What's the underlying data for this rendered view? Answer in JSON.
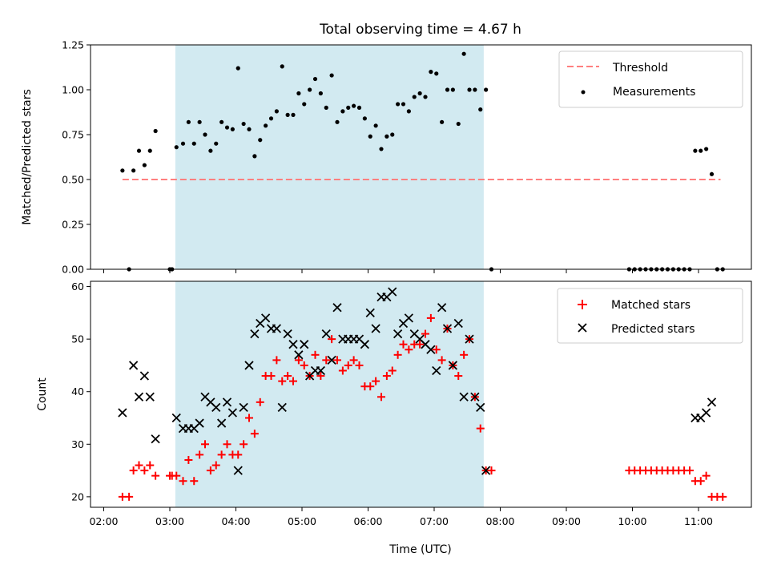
{
  "chart_data": [
    {
      "type": "scatter",
      "title": "Total observing time = 4.67 h",
      "xlabel": "",
      "ylabel": "Matched/Predicted stars",
      "ylim": [
        0,
        1.25
      ],
      "yticks": [
        "0.00",
        "0.25",
        "0.50",
        "0.75",
        "1.00",
        "1.25"
      ],
      "shaded_span": {
        "start": "03:05",
        "end": "07:45",
        "color": "#add8e6"
      },
      "legend_position": "upper right",
      "threshold": {
        "name": "Threshold",
        "value": 0.5,
        "x_start": "02:17",
        "x_end": "11:20",
        "color": "#ff7f7f",
        "style": "dashed"
      },
      "series": [
        {
          "name": "Measurements",
          "marker": "dot",
          "color": "#000000",
          "points": [
            [
              "02:17",
              0.55
            ],
            [
              "02:23",
              0.0
            ],
            [
              "02:27",
              0.55
            ],
            [
              "02:32",
              0.66
            ],
            [
              "02:37",
              0.58
            ],
            [
              "02:42",
              0.66
            ],
            [
              "02:47",
              0.77
            ],
            [
              "03:00",
              0.0
            ],
            [
              "03:02",
              0.0
            ],
            [
              "03:06",
              0.68
            ],
            [
              "03:12",
              0.7
            ],
            [
              "03:17",
              0.82
            ],
            [
              "03:22",
              0.7
            ],
            [
              "03:27",
              0.82
            ],
            [
              "03:32",
              0.75
            ],
            [
              "03:37",
              0.66
            ],
            [
              "03:42",
              0.7
            ],
            [
              "03:47",
              0.82
            ],
            [
              "03:52",
              0.79
            ],
            [
              "03:57",
              0.78
            ],
            [
              "04:02",
              1.12
            ],
            [
              "04:07",
              0.81
            ],
            [
              "04:12",
              0.78
            ],
            [
              "04:17",
              0.63
            ],
            [
              "04:22",
              0.72
            ],
            [
              "04:27",
              0.8
            ],
            [
              "04:32",
              0.84
            ],
            [
              "04:37",
              0.88
            ],
            [
              "04:42",
              1.13
            ],
            [
              "04:47",
              0.86
            ],
            [
              "04:52",
              0.86
            ],
            [
              "04:57",
              0.98
            ],
            [
              "05:02",
              0.92
            ],
            [
              "05:07",
              1.0
            ],
            [
              "05:12",
              1.06
            ],
            [
              "05:17",
              0.98
            ],
            [
              "05:22",
              0.9
            ],
            [
              "05:27",
              1.08
            ],
            [
              "05:32",
              0.82
            ],
            [
              "05:37",
              0.88
            ],
            [
              "05:42",
              0.9
            ],
            [
              "05:47",
              0.91
            ],
            [
              "05:52",
              0.9
            ],
            [
              "05:57",
              0.84
            ],
            [
              "06:02",
              0.74
            ],
            [
              "06:07",
              0.8
            ],
            [
              "06:12",
              0.67
            ],
            [
              "06:17",
              0.74
            ],
            [
              "06:22",
              0.75
            ],
            [
              "06:27",
              0.92
            ],
            [
              "06:32",
              0.92
            ],
            [
              "06:37",
              0.88
            ],
            [
              "06:42",
              0.96
            ],
            [
              "06:47",
              0.98
            ],
            [
              "06:52",
              0.96
            ],
            [
              "06:57",
              1.1
            ],
            [
              "07:02",
              1.09
            ],
            [
              "07:07",
              0.82
            ],
            [
              "07:12",
              1.0
            ],
            [
              "07:17",
              1.0
            ],
            [
              "07:22",
              0.81
            ],
            [
              "07:27",
              1.2
            ],
            [
              "07:32",
              1.0
            ],
            [
              "07:37",
              1.0
            ],
            [
              "07:42",
              0.89
            ],
            [
              "07:47",
              1.0
            ],
            [
              "07:52",
              0.0
            ],
            [
              "09:57",
              0.0
            ],
            [
              "10:02",
              0.0
            ],
            [
              "10:07",
              0.0
            ],
            [
              "10:12",
              0.0
            ],
            [
              "10:17",
              0.0
            ],
            [
              "10:22",
              0.0
            ],
            [
              "10:27",
              0.0
            ],
            [
              "10:32",
              0.0
            ],
            [
              "10:37",
              0.0
            ],
            [
              "10:42",
              0.0
            ],
            [
              "10:47",
              0.0
            ],
            [
              "10:52",
              0.0
            ],
            [
              "10:57",
              0.66
            ],
            [
              "11:02",
              0.66
            ],
            [
              "11:07",
              0.67
            ],
            [
              "11:12",
              0.53
            ],
            [
              "11:17",
              0.0
            ],
            [
              "11:22",
              0.0
            ]
          ]
        }
      ]
    },
    {
      "type": "scatter",
      "xlabel": "Time (UTC)",
      "ylabel": "Count",
      "ylim": [
        18,
        61
      ],
      "yticks": [
        "20",
        "30",
        "40",
        "50",
        "60"
      ],
      "xticks": [
        "02:00",
        "03:00",
        "04:00",
        "05:00",
        "06:00",
        "07:00",
        "08:00",
        "09:00",
        "10:00",
        "11:00"
      ],
      "xlim": [
        "01:48",
        "11:48"
      ],
      "shaded_span": {
        "start": "03:05",
        "end": "07:45",
        "color": "#add8e6"
      },
      "legend_position": "upper right",
      "series": [
        {
          "name": "Matched stars",
          "marker": "plus",
          "color": "#ff0000",
          "points": [
            [
              "02:17",
              20
            ],
            [
              "02:23",
              20
            ],
            [
              "02:27",
              25
            ],
            [
              "02:32",
              26
            ],
            [
              "02:37",
              25
            ],
            [
              "02:42",
              26
            ],
            [
              "02:47",
              24
            ],
            [
              "03:00",
              24
            ],
            [
              "03:02",
              24
            ],
            [
              "03:06",
              24
            ],
            [
              "03:12",
              23
            ],
            [
              "03:17",
              27
            ],
            [
              "03:22",
              23
            ],
            [
              "03:27",
              28
            ],
            [
              "03:32",
              30
            ],
            [
              "03:37",
              25
            ],
            [
              "03:42",
              26
            ],
            [
              "03:47",
              28
            ],
            [
              "03:52",
              30
            ],
            [
              "03:57",
              28
            ],
            [
              "04:02",
              28
            ],
            [
              "04:07",
              30
            ],
            [
              "04:12",
              35
            ],
            [
              "04:17",
              32
            ],
            [
              "04:22",
              38
            ],
            [
              "04:27",
              43
            ],
            [
              "04:32",
              43
            ],
            [
              "04:37",
              46
            ],
            [
              "04:42",
              42
            ],
            [
              "04:47",
              43
            ],
            [
              "04:52",
              42
            ],
            [
              "04:57",
              46
            ],
            [
              "05:02",
              45
            ],
            [
              "05:07",
              43
            ],
            [
              "05:12",
              47
            ],
            [
              "05:17",
              43
            ],
            [
              "05:22",
              46
            ],
            [
              "05:27",
              50
            ],
            [
              "05:32",
              46
            ],
            [
              "05:37",
              44
            ],
            [
              "05:42",
              45
            ],
            [
              "05:47",
              46
            ],
            [
              "05:52",
              45
            ],
            [
              "05:57",
              41
            ],
            [
              "06:02",
              41
            ],
            [
              "06:07",
              42
            ],
            [
              "06:12",
              39
            ],
            [
              "06:17",
              43
            ],
            [
              "06:22",
              44
            ],
            [
              "06:27",
              47
            ],
            [
              "06:32",
              49
            ],
            [
              "06:37",
              48
            ],
            [
              "06:42",
              49
            ],
            [
              "06:47",
              49
            ],
            [
              "06:52",
              51
            ],
            [
              "06:57",
              54
            ],
            [
              "07:02",
              48
            ],
            [
              "07:07",
              46
            ],
            [
              "07:12",
              52
            ],
            [
              "07:17",
              45
            ],
            [
              "07:22",
              43
            ],
            [
              "07:27",
              47
            ],
            [
              "07:32",
              50
            ],
            [
              "07:37",
              39
            ],
            [
              "07:42",
              33
            ],
            [
              "07:47",
              25
            ],
            [
              "07:52",
              25
            ],
            [
              "09:57",
              25
            ],
            [
              "10:02",
              25
            ],
            [
              "10:07",
              25
            ],
            [
              "10:12",
              25
            ],
            [
              "10:17",
              25
            ],
            [
              "10:22",
              25
            ],
            [
              "10:27",
              25
            ],
            [
              "10:32",
              25
            ],
            [
              "10:37",
              25
            ],
            [
              "10:42",
              25
            ],
            [
              "10:47",
              25
            ],
            [
              "10:52",
              25
            ],
            [
              "10:57",
              23
            ],
            [
              "11:02",
              23
            ],
            [
              "11:07",
              24
            ],
            [
              "11:12",
              20
            ],
            [
              "11:17",
              20
            ],
            [
              "11:22",
              20
            ]
          ]
        },
        {
          "name": "Predicted stars",
          "marker": "x",
          "color": "#000000",
          "points": [
            [
              "02:17",
              36
            ],
            [
              "02:27",
              45
            ],
            [
              "02:32",
              39
            ],
            [
              "02:37",
              43
            ],
            [
              "02:42",
              39
            ],
            [
              "02:47",
              31
            ],
            [
              "03:06",
              35
            ],
            [
              "03:12",
              33
            ],
            [
              "03:17",
              33
            ],
            [
              "03:22",
              33
            ],
            [
              "03:27",
              34
            ],
            [
              "03:32",
              39
            ],
            [
              "03:37",
              38
            ],
            [
              "03:42",
              37
            ],
            [
              "03:47",
              34
            ],
            [
              "03:52",
              38
            ],
            [
              "03:57",
              36
            ],
            [
              "04:02",
              25
            ],
            [
              "04:07",
              37
            ],
            [
              "04:12",
              45
            ],
            [
              "04:17",
              51
            ],
            [
              "04:22",
              53
            ],
            [
              "04:27",
              54
            ],
            [
              "04:32",
              52
            ],
            [
              "04:37",
              52
            ],
            [
              "04:42",
              37
            ],
            [
              "04:47",
              51
            ],
            [
              "04:52",
              49
            ],
            [
              "04:57",
              47
            ],
            [
              "05:02",
              49
            ],
            [
              "05:07",
              43
            ],
            [
              "05:12",
              44
            ],
            [
              "05:17",
              44
            ],
            [
              "05:22",
              51
            ],
            [
              "05:27",
              46
            ],
            [
              "05:32",
              56
            ],
            [
              "05:37",
              50
            ],
            [
              "05:42",
              50
            ],
            [
              "05:47",
              50
            ],
            [
              "05:52",
              50
            ],
            [
              "05:57",
              49
            ],
            [
              "06:02",
              55
            ],
            [
              "06:07",
              52
            ],
            [
              "06:12",
              58
            ],
            [
              "06:17",
              58
            ],
            [
              "06:22",
              59
            ],
            [
              "06:27",
              51
            ],
            [
              "06:32",
              53
            ],
            [
              "06:37",
              54
            ],
            [
              "06:42",
              51
            ],
            [
              "06:47",
              50
            ],
            [
              "06:52",
              49
            ],
            [
              "06:57",
              48
            ],
            [
              "07:02",
              44
            ],
            [
              "07:07",
              56
            ],
            [
              "07:12",
              52
            ],
            [
              "07:17",
              45
            ],
            [
              "07:22",
              53
            ],
            [
              "07:27",
              39
            ],
            [
              "07:32",
              50
            ],
            [
              "07:37",
              39
            ],
            [
              "07:42",
              37
            ],
            [
              "07:47",
              25
            ],
            [
              "10:57",
              35
            ],
            [
              "11:02",
              35
            ],
            [
              "11:07",
              36
            ],
            [
              "11:12",
              38
            ]
          ]
        }
      ]
    }
  ]
}
